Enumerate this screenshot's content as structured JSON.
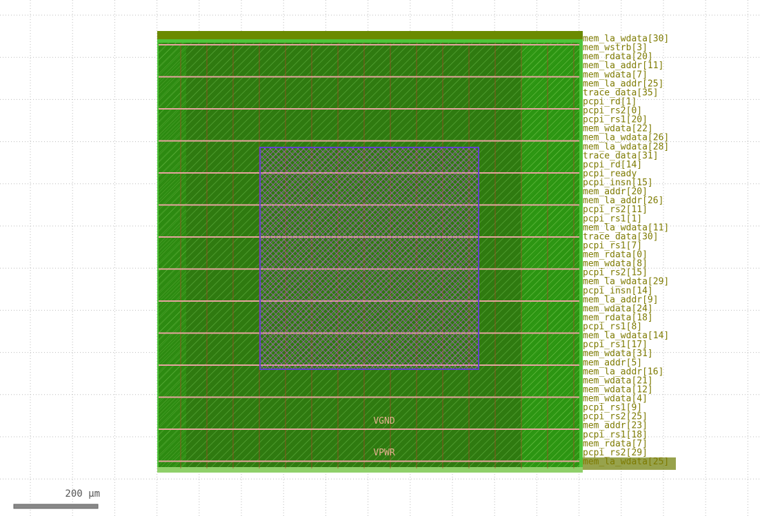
{
  "scale_bar": {
    "label": "200 μm"
  },
  "nets": [
    "VGND",
    "VPWR"
  ],
  "pins": [
    "mem_la_wdata[30]",
    "mem_wstrb[3]",
    "mem_rdata[20]",
    "mem_la_addr[11]",
    "mem_wdata[7]",
    "mem_la_addr[25]",
    "trace_data[35]",
    "pcpi_rd[1]",
    "pcpi_rs2[0]",
    "pcpi_rs1[20]",
    "mem_wdata[22]",
    "mem_la_wdata[26]",
    "mem_la_wdata[28]",
    "trace_data[31]",
    "pcpi_rd[14]",
    "pcpi_ready",
    "pcpi_insn[15]",
    "mem_addr[20]",
    "mem_la_addr[26]",
    "pcpi_rs2[11]",
    "pcpi_rs1[1]",
    "mem_la_wdata[11]",
    "trace_data[30]",
    "pcpi_rs1[7]",
    "mem_rdata[0]",
    "mem_wdata[8]",
    "pcpi_rs2[15]",
    "mem_la_wdata[29]",
    "pcpi_insn[14]",
    "mem_la_addr[9]",
    "mem_wdata[24]",
    "mem_rdata[18]",
    "pcpi_rs1[8]",
    "mem_la_wdata[14]",
    "pcpi_rs1[17]",
    "mem_wdata[31]",
    "mem_addr[5]",
    "mem_la_addr[16]",
    "mem_wdata[21]",
    "mem_wdata[12]",
    "mem_wdata[4]",
    "pcpi_rs1[9]",
    "pcpi_rs2[25]",
    "mem_addr[23]",
    "pcpi_rs1[18]",
    "mem_rdata[7]",
    "pcpi_rs2[29]",
    "mem_la_wdata[25]"
  ]
}
